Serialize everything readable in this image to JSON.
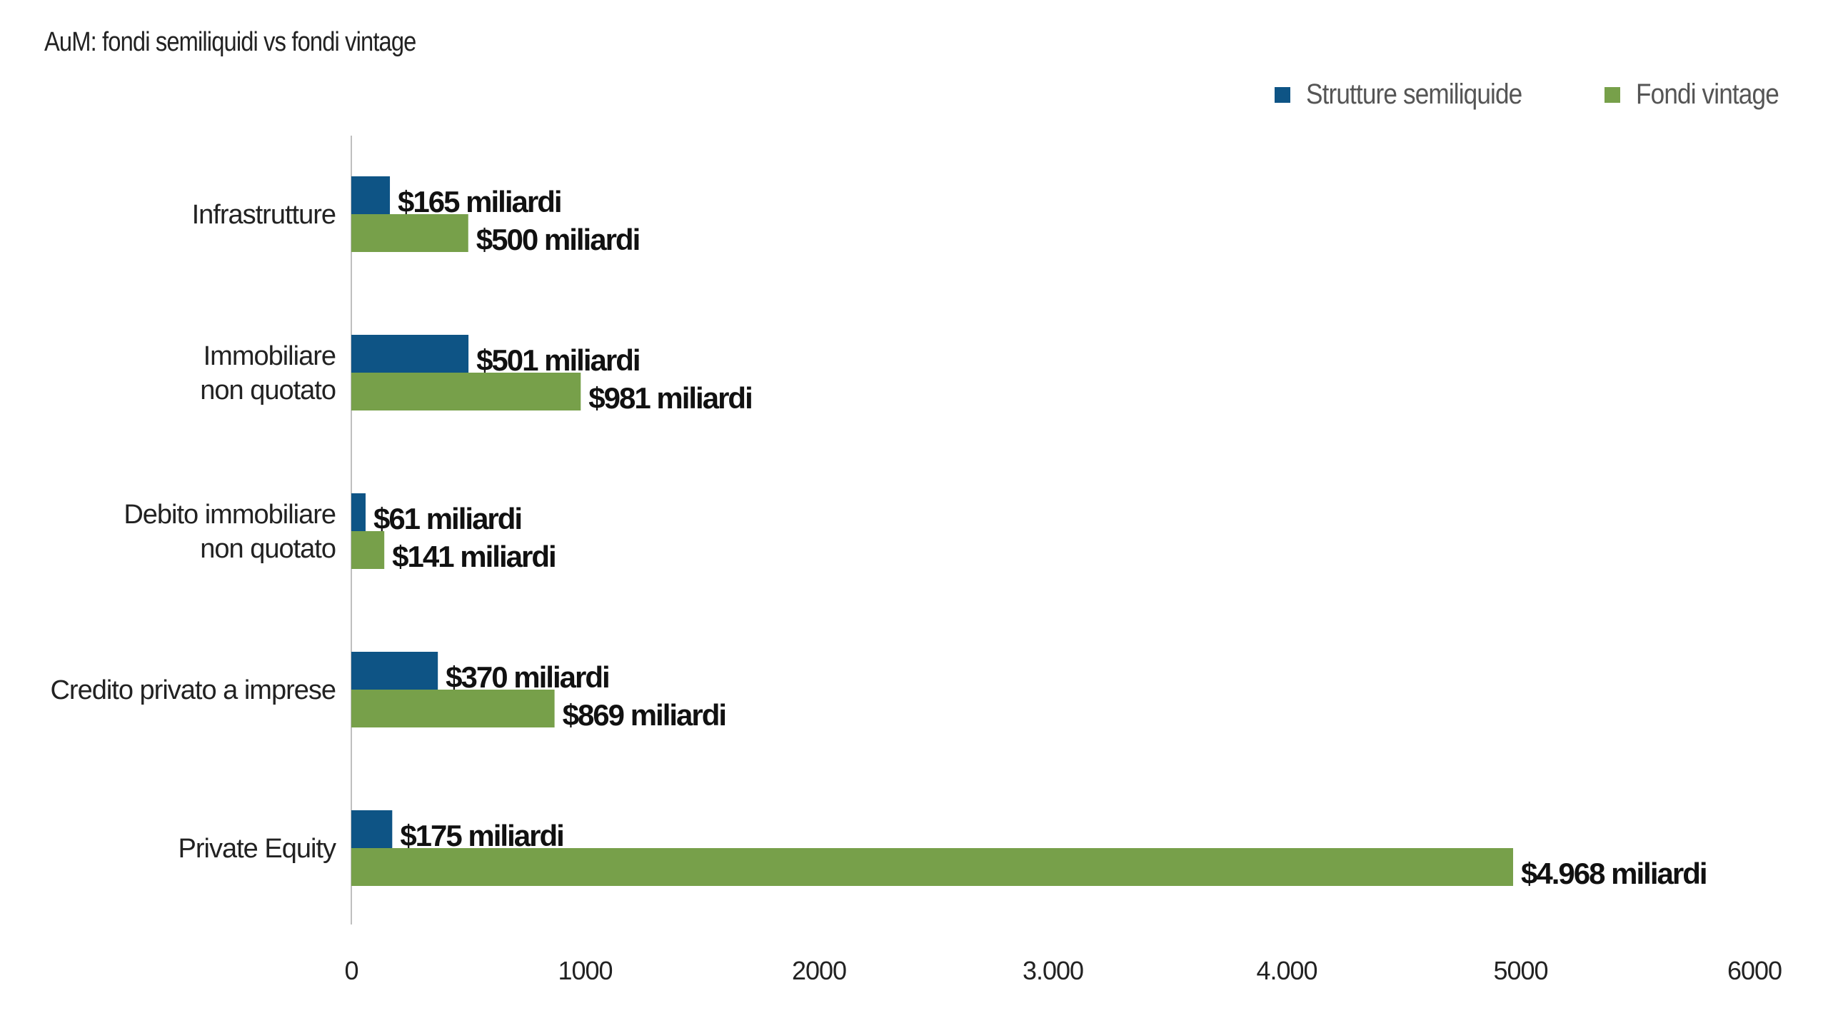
{
  "title": "AuM: fondi semiliquidi vs fondi vintage",
  "colors": {
    "semiliquid": "#0e5485",
    "vintage": "#77a04a",
    "axis": "#bfbfbf"
  },
  "chart_data": {
    "type": "bar",
    "orientation": "horizontal",
    "categories": [
      [
        "Infrastrutture"
      ],
      [
        "Immobiliare",
        "non quotato"
      ],
      [
        "Debito immobiliare",
        "non quotato"
      ],
      [
        "Credito privato a imprese"
      ],
      [
        "Private Equity"
      ]
    ],
    "series": [
      {
        "name": "Strutture semiliquide",
        "values": [
          165,
          501,
          61,
          370,
          175
        ],
        "labels": [
          "$165 miliardi",
          "$501 miliardi",
          "$61 miliardi",
          "$370 miliardi",
          "$175 miliardi"
        ]
      },
      {
        "name": "Fondi vintage",
        "values": [
          500,
          981,
          141,
          869,
          4968
        ],
        "labels": [
          "$500 miliardi",
          "$981 miliardi",
          "$141 miliardi",
          "$869 miliardi",
          "$4.968 miliardi"
        ]
      }
    ],
    "xlim": [
      0,
      6000
    ],
    "xticks": [
      0,
      1000,
      2000,
      3000,
      4000,
      5000,
      6000
    ],
    "xtick_labels": [
      "0",
      "1000",
      "2000",
      "3.000",
      "4.000",
      "5000",
      "6000"
    ],
    "legend_position": "top-right",
    "grid": false
  }
}
